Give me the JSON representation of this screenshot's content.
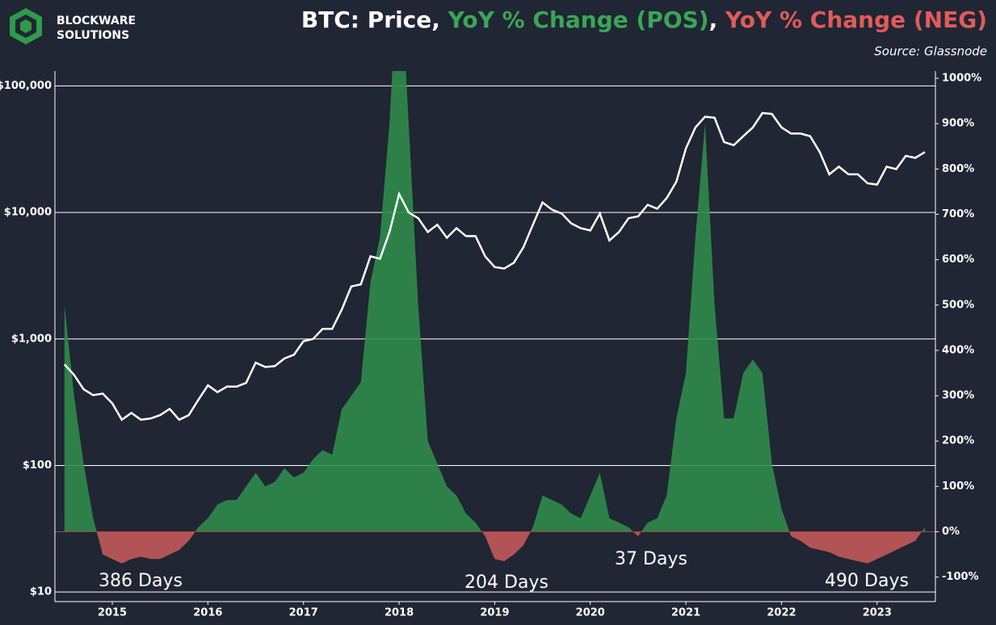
{
  "chart_data": {
    "type": "dual-axis-line-area",
    "title": [
      "BTC: Price",
      ", ",
      "YoY % Change (POS)",
      ", ",
      "YoY % Change (NEG)"
    ],
    "title_colors": [
      "#ffffff",
      "#ffffff",
      "#3aa657",
      "#ffffff",
      "#e05b5b"
    ],
    "subtitle": "Source: Glassnode",
    "logo": [
      "BLOCKWARE",
      "SOLUTIONS"
    ],
    "x": [
      2014.5,
      2014.6,
      2014.7,
      2014.8,
      2014.9,
      2015.0,
      2015.1,
      2015.2,
      2015.3,
      2015.4,
      2015.5,
      2015.6,
      2015.7,
      2015.8,
      2015.9,
      2016.0,
      2016.1,
      2016.2,
      2016.3,
      2016.4,
      2016.5,
      2016.6,
      2016.7,
      2016.8,
      2016.9,
      2017.0,
      2017.1,
      2017.2,
      2017.3,
      2017.4,
      2017.5,
      2017.6,
      2017.7,
      2017.8,
      2017.9,
      2018.0,
      2018.1,
      2018.2,
      2018.3,
      2018.4,
      2018.5,
      2018.6,
      2018.7,
      2018.8,
      2018.9,
      2019.0,
      2019.1,
      2019.2,
      2019.3,
      2019.4,
      2019.5,
      2019.6,
      2019.7,
      2019.8,
      2019.9,
      2020.0,
      2020.1,
      2020.2,
      2020.3,
      2020.4,
      2020.5,
      2020.6,
      2020.7,
      2020.8,
      2020.9,
      2021.0,
      2021.1,
      2021.2,
      2021.3,
      2021.4,
      2021.5,
      2021.6,
      2021.7,
      2021.8,
      2021.9,
      2022.0,
      2022.1,
      2022.2,
      2022.3,
      2022.4,
      2022.5,
      2022.6,
      2022.7,
      2022.8,
      2022.9,
      2023.0,
      2023.1,
      2023.2,
      2023.3,
      2023.4,
      2023.5
    ],
    "series": [
      {
        "name": "Price",
        "color": "#ffffff",
        "values": [
          630,
          520,
          400,
          360,
          370,
          310,
          230,
          260,
          230,
          235,
          250,
          280,
          230,
          250,
          330,
          430,
          380,
          420,
          420,
          450,
          650,
          600,
          610,
          700,
          750,
          960,
          1000,
          1200,
          1200,
          1700,
          2600,
          2700,
          4500,
          4300,
          7000,
          14000,
          10000,
          9000,
          7000,
          8000,
          6300,
          7500,
          6500,
          6500,
          4500,
          3700,
          3600,
          4000,
          5300,
          8000,
          12000,
          10500,
          9800,
          8200,
          7500,
          7200,
          9800,
          6000,
          7000,
          9000,
          9300,
          11500,
          10700,
          13000,
          17500,
          32000,
          47000,
          57000,
          56000,
          36000,
          34000,
          40000,
          47000,
          61000,
          60000,
          47000,
          42000,
          42000,
          40000,
          30000,
          20000,
          23000,
          20000,
          20000,
          17000,
          16600,
          23000,
          22000,
          28000,
          27000,
          30000
        ]
      },
      {
        "name": "YoY % Change",
        "axis": "y2",
        "color": "#2f8c4a",
        "negative_color": "#c25a5a",
        "values": [
          500,
          300,
          150,
          30,
          -50,
          -60,
          -70,
          -60,
          -55,
          -60,
          -60,
          -50,
          -40,
          -20,
          10,
          30,
          60,
          70,
          70,
          100,
          130,
          100,
          110,
          140,
          120,
          130,
          160,
          180,
          170,
          270,
          300,
          330,
          550,
          650,
          900,
          1300,
          900,
          500,
          200,
          150,
          100,
          80,
          40,
          20,
          -10,
          -60,
          -65,
          -50,
          -30,
          10,
          80,
          70,
          60,
          40,
          30,
          80,
          130,
          30,
          20,
          10,
          -10,
          20,
          30,
          80,
          250,
          350,
          650,
          900,
          500,
          250,
          250,
          350,
          380,
          350,
          150,
          50,
          -10,
          -20,
          -35,
          -40,
          -45,
          -55,
          -60,
          -65,
          -70,
          -60,
          -50,
          -40,
          -30,
          -20,
          10
        ]
      }
    ],
    "annotations": [
      "386 Days",
      "204 Days",
      "37 Days",
      "490 Days"
    ],
    "xlim": [
      2014.4,
      2023.61
    ],
    "xticks": [
      2015,
      2016,
      2017,
      2018,
      2019,
      2020,
      2021,
      2022,
      2023
    ],
    "ylim": [
      8.4,
      131000
    ],
    "log_scale": true,
    "yticks": [
      {
        "value": 10,
        "label": "$10"
      },
      {
        "value": 100,
        "label": "$100"
      },
      {
        "value": 1000,
        "label": "$1,000"
      },
      {
        "value": 10000,
        "label": "$10,000"
      },
      {
        "value": 100000,
        "label": "$100,000"
      }
    ],
    "y2lim": [
      -154,
      1016
    ],
    "y2ticks": [
      {
        "value": -100,
        "label": "-100%"
      },
      {
        "value": 0,
        "label": "0%"
      },
      {
        "value": 100,
        "label": "100%"
      },
      {
        "value": 200,
        "label": "200%"
      },
      {
        "value": 300,
        "label": "300%"
      },
      {
        "value": 400,
        "label": "400%"
      },
      {
        "value": 500,
        "label": "500%"
      },
      {
        "value": 600,
        "label": "600%"
      },
      {
        "value": 700,
        "label": "700%"
      },
      {
        "value": 800,
        "label": "800%"
      },
      {
        "value": 900,
        "label": "900%"
      },
      {
        "value": 1000,
        "label": "1000%"
      }
    ],
    "grid": true
  }
}
